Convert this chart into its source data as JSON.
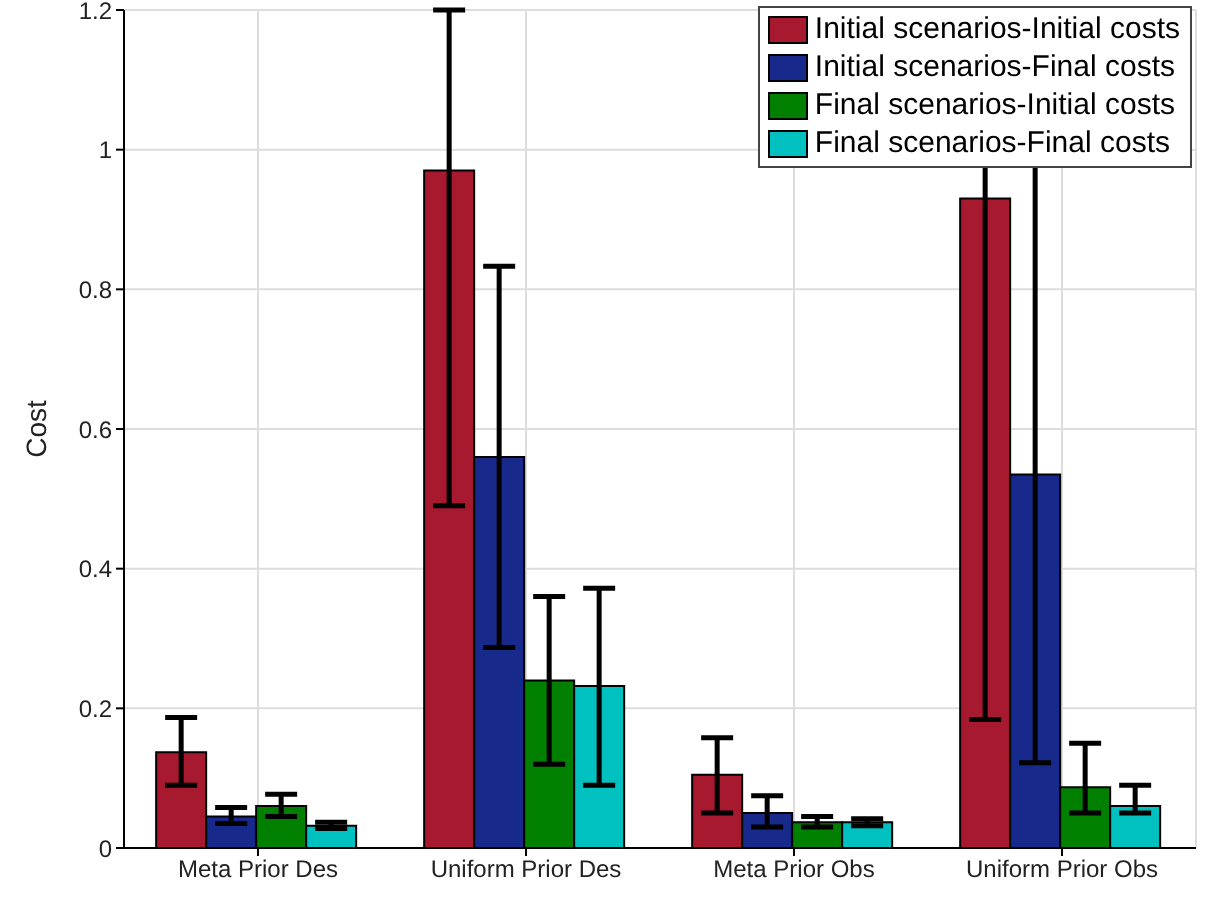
{
  "chart_data": {
    "type": "bar",
    "ylabel": "Cost",
    "categories": [
      "Meta Prior Des",
      "Uniform Prior Des",
      "Meta Prior Obs",
      "Uniform Prior Obs"
    ],
    "series": [
      {
        "name": "Initial scenarios-Initial costs",
        "color": "#a6192e",
        "values": [
          0.137,
          0.97,
          0.105,
          0.93
        ],
        "errors": [
          [
            0.09,
            0.187
          ],
          [
            0.49,
            1.2
          ],
          [
            0.05,
            0.158
          ],
          [
            0.184,
            1.2
          ]
        ]
      },
      {
        "name": "Initial scenarios-Final costs",
        "color": "#172a8b",
        "values": [
          0.045,
          0.56,
          0.05,
          0.535
        ],
        "errors": [
          [
            0.035,
            0.058
          ],
          [
            0.287,
            0.833
          ],
          [
            0.03,
            0.075
          ],
          [
            0.122,
            1.2
          ]
        ]
      },
      {
        "name": "Final scenarios-Initial costs",
        "color": "#007f00",
        "values": [
          0.06,
          0.24,
          0.037,
          0.087
        ],
        "errors": [
          [
            0.045,
            0.077
          ],
          [
            0.12,
            0.36
          ],
          [
            0.03,
            0.045
          ],
          [
            0.05,
            0.15
          ]
        ]
      },
      {
        "name": "Final scenarios-Final costs",
        "color": "#00c0c0",
        "values": [
          0.032,
          0.232,
          0.037,
          0.06
        ],
        "errors": [
          [
            0.028,
            0.037
          ],
          [
            0.09,
            0.372
          ],
          [
            0.032,
            0.042
          ],
          [
            0.05,
            0.09
          ]
        ]
      }
    ],
    "ylim": [
      0,
      1.2
    ],
    "yticks": [
      0,
      0.2,
      0.4,
      0.6,
      0.8,
      1,
      1.2
    ],
    "grid": true,
    "legend": "top right"
  }
}
